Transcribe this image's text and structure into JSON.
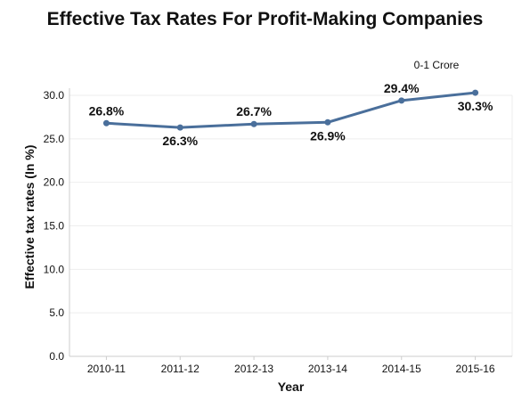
{
  "chart_data": {
    "type": "line",
    "title": "Effective Tax Rates For Profit-Making Companies",
    "xlabel": "Year",
    "ylabel": "Effective tax rates (In %)",
    "categories": [
      "2010-11",
      "2011-12",
      "2012-13",
      "2013-14",
      "2014-15",
      "2015-16"
    ],
    "series": [
      {
        "name": "0-1 Crore",
        "values": [
          26.8,
          26.3,
          26.7,
          26.9,
          29.4,
          30.3
        ],
        "labels": [
          "26.8%",
          "26.3%",
          "26.7%",
          "26.9%",
          "29.4%",
          "30.3%"
        ],
        "label_positions": [
          "above",
          "below",
          "above",
          "below",
          "above",
          "below"
        ]
      }
    ],
    "ylim": [
      0,
      30
    ],
    "yticks": [
      0.0,
      5.0,
      10.0,
      15.0,
      20.0,
      25.0,
      30.0
    ],
    "ytick_labels": [
      "0.0",
      "5.0",
      "10.0",
      "15.0",
      "20.0",
      "25.0",
      "30.0"
    ],
    "grid": true,
    "legend_position": "top-right",
    "colors": {
      "series": "#4a6f9b",
      "grid": "#eeeeee",
      "axis": "#cccccc",
      "text": "#111111"
    }
  }
}
